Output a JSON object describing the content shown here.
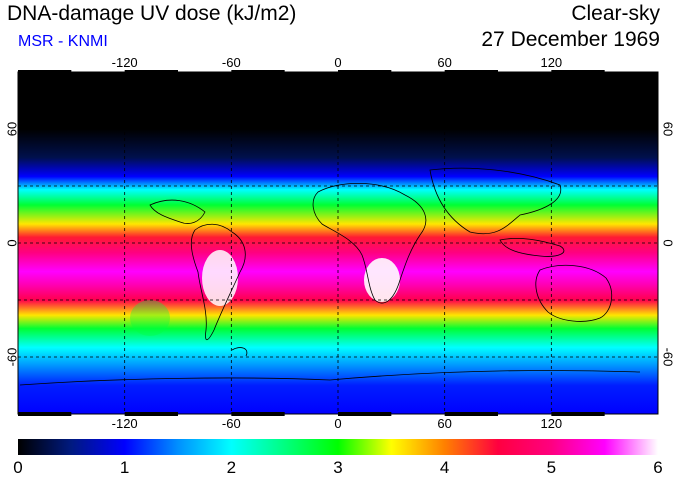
{
  "header": {
    "title": "DNA-damage UV dose (kJ/m2)",
    "source": "MSR - KNMI",
    "sky": "Clear-sky",
    "date": "27 December 1969"
  },
  "colors": {
    "source_text": "#0000ff",
    "grid": "#000000",
    "frame": "#000000"
  },
  "axes": {
    "top_lon_ticks": [
      "-120",
      "-60",
      "0",
      "60",
      "120"
    ],
    "bottom_lon_ticks": [
      "-120",
      "-60",
      "0",
      "60",
      "120"
    ],
    "lon_values": [
      -120,
      -60,
      0,
      60,
      120
    ],
    "left_lat_ticks": [
      "60",
      "0",
      "-60"
    ],
    "right_lat_ticks": [
      "60",
      "0",
      "-60"
    ],
    "lat_values": [
      60,
      0,
      -60
    ],
    "lon_range": [
      -180,
      180
    ],
    "lat_range": [
      -90,
      90
    ]
  },
  "colorbar": {
    "labels": [
      "0",
      "1",
      "2",
      "3",
      "4",
      "5",
      "6"
    ],
    "range": [
      0,
      6
    ],
    "stops": [
      {
        "v": 0.0,
        "c": "#000000"
      },
      {
        "v": 0.5,
        "c": "#001a80"
      },
      {
        "v": 1.0,
        "c": "#0000ff"
      },
      {
        "v": 1.5,
        "c": "#0090ff"
      },
      {
        "v": 2.0,
        "c": "#00ffff"
      },
      {
        "v": 2.5,
        "c": "#00ff80"
      },
      {
        "v": 3.0,
        "c": "#00ff00"
      },
      {
        "v": 3.5,
        "c": "#ffff00"
      },
      {
        "v": 4.0,
        "c": "#ff8000"
      },
      {
        "v": 4.5,
        "c": "#ff0040"
      },
      {
        "v": 5.0,
        "c": "#ff0080"
      },
      {
        "v": 5.5,
        "c": "#ff00ff"
      },
      {
        "v": 6.0,
        "c": "#ffffff"
      }
    ]
  },
  "dose_profile": [
    {
      "lat": 90,
      "v": 0.0
    },
    {
      "lat": 60,
      "v": 0.0
    },
    {
      "lat": 45,
      "v": 0.3
    },
    {
      "lat": 35,
      "v": 1.0
    },
    {
      "lat": 28,
      "v": 2.0
    },
    {
      "lat": 20,
      "v": 2.8
    },
    {
      "lat": 10,
      "v": 3.6
    },
    {
      "lat": 3,
      "v": 4.4
    },
    {
      "lat": -5,
      "v": 5.0
    },
    {
      "lat": -15,
      "v": 5.5
    },
    {
      "lat": -22,
      "v": 5.2
    },
    {
      "lat": -30,
      "v": 4.6
    },
    {
      "lat": -38,
      "v": 3.6
    },
    {
      "lat": -45,
      "v": 2.8
    },
    {
      "lat": -55,
      "v": 2.0
    },
    {
      "lat": -65,
      "v": 1.5
    },
    {
      "lat": -75,
      "v": 1.1
    },
    {
      "lat": -90,
      "v": 1.0
    }
  ]
}
